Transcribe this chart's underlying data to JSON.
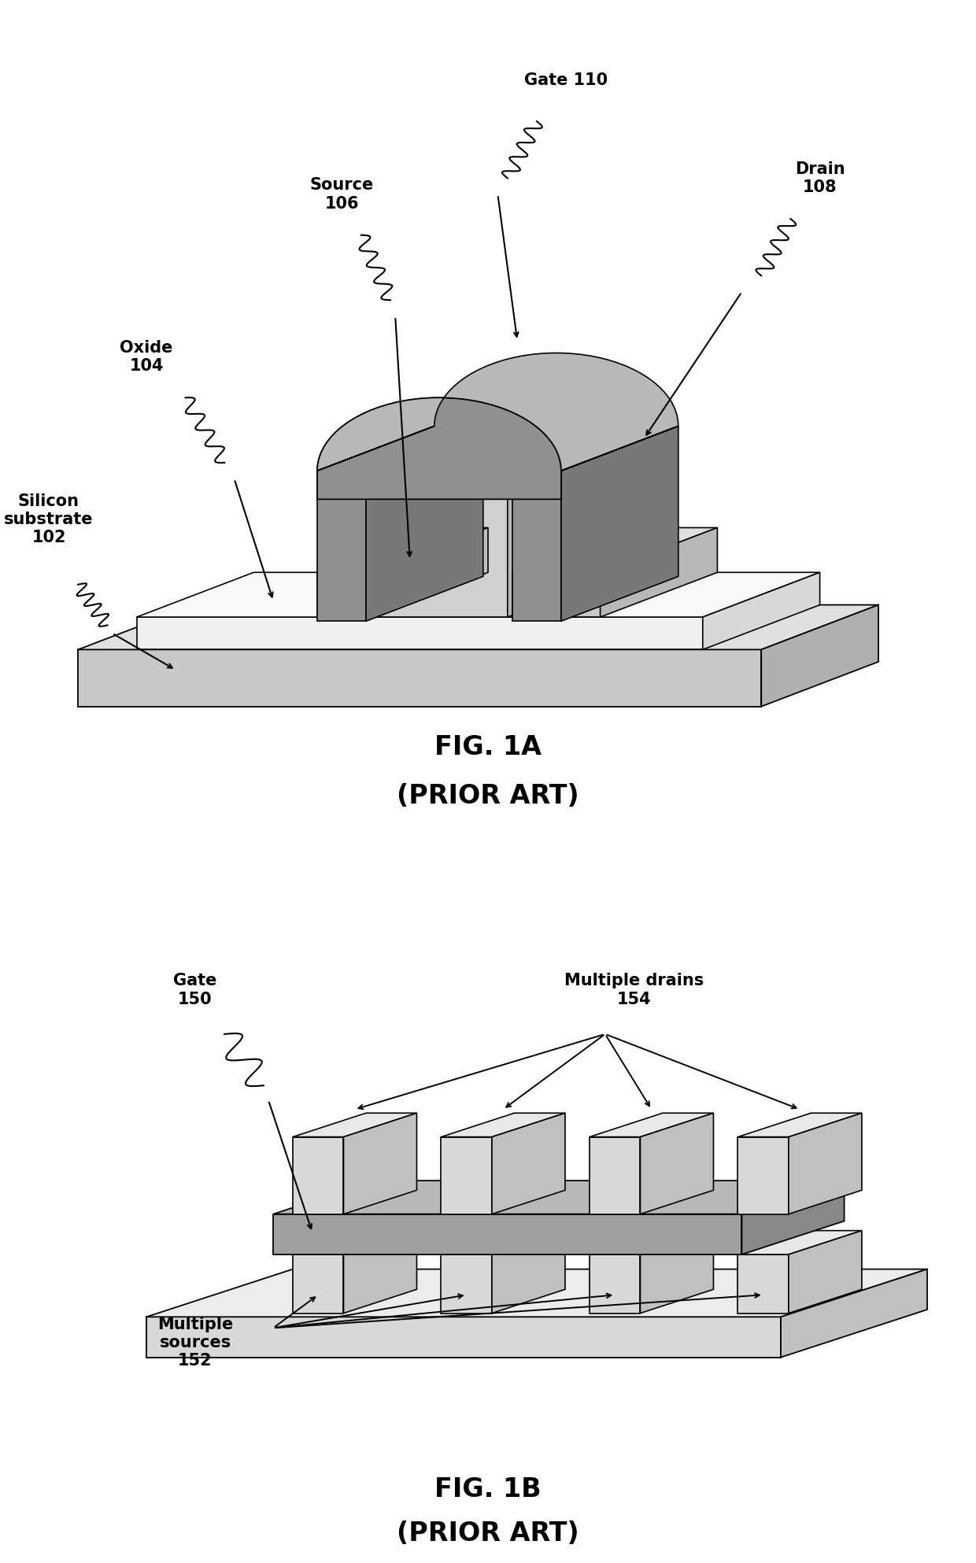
{
  "background_color": "#ffffff",
  "fig1a_title": "FIG. 1A",
  "fig1a_subtitle": "(PRIOR ART)",
  "fig1b_title": "FIG. 1B",
  "fig1b_subtitle": "(PRIOR ART)",
  "title_fontsize": 24,
  "subtitle_fontsize": 24,
  "label_fontsize": 15,
  "annotation_fontsize": 15,
  "color_substrate_face": "#c8c8c8",
  "color_substrate_top": "#dcdcdc",
  "color_substrate_side": "#b0b0b0",
  "color_oxide_face": "#e8e8e8",
  "color_oxide_top": "#f0f0f0",
  "color_fin_face": "#d0d0d0",
  "color_fin_top": "#e0e0e0",
  "color_fin_side": "#b8b8b8",
  "color_gate_face": "#a0a0a0",
  "color_gate_top": "#b8b8b8",
  "color_gate_side": "#888888",
  "color_gate_arch_face": "#b0b0b0",
  "color_gate_arch_top": "#c8c8c8",
  "color_black": "#000000"
}
